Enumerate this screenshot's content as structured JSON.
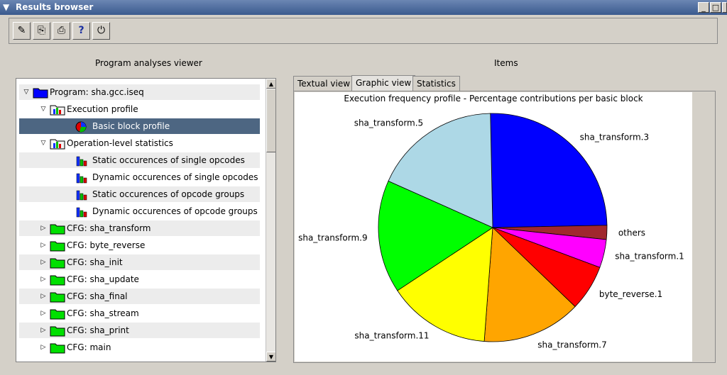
{
  "window": {
    "title": "Results browser",
    "controls": [
      "_",
      "□",
      "×"
    ]
  },
  "toolbar": {
    "buttons": [
      {
        "name": "clear-tool-button",
        "glyph": "✎"
      },
      {
        "name": "import-tool-button",
        "glyph": "⎘"
      },
      {
        "name": "print-tool-button",
        "glyph": "⎙"
      },
      {
        "name": "help-tool-button",
        "glyph": "?"
      },
      {
        "name": "power-tool-button",
        "glyph": "⏻"
      }
    ]
  },
  "left": {
    "header": "Program analyses viewer",
    "tree": [
      {
        "label": "Program: sha.gcc.iseq",
        "level": 0,
        "expander": "open",
        "icon": "folder-blue-icon",
        "style": "alt"
      },
      {
        "label": "Execution profile",
        "level": 1,
        "expander": "open",
        "icon": "chart-folder-icon",
        "style": ""
      },
      {
        "label": "Basic block profile",
        "level": 2,
        "expander": "none",
        "icon": "pie-icon",
        "style": "sel"
      },
      {
        "label": "Operation-level statistics",
        "level": 1,
        "expander": "open",
        "icon": "chart-folder-icon",
        "style": ""
      },
      {
        "label": "Static occurences of single opcodes",
        "level": 2,
        "expander": "none",
        "icon": "bar-icon",
        "style": "alt"
      },
      {
        "label": "Dynamic occurences of single opcodes",
        "level": 2,
        "expander": "none",
        "icon": "bar-icon",
        "style": ""
      },
      {
        "label": "Static occurences of opcode groups",
        "level": 2,
        "expander": "none",
        "icon": "bar-icon",
        "style": "alt"
      },
      {
        "label": "Dynamic occurences of opcode groups",
        "level": 2,
        "expander": "none",
        "icon": "bar-icon",
        "style": ""
      },
      {
        "label": "CFG: sha_transform",
        "level": 1,
        "expander": "closed",
        "icon": "folder-green-icon",
        "style": "alt"
      },
      {
        "label": "CFG: byte_reverse",
        "level": 1,
        "expander": "closed",
        "icon": "folder-green-icon",
        "style": ""
      },
      {
        "label": "CFG: sha_init",
        "level": 1,
        "expander": "closed",
        "icon": "folder-green-icon",
        "style": "alt"
      },
      {
        "label": "CFG: sha_update",
        "level": 1,
        "expander": "closed",
        "icon": "folder-green-icon",
        "style": ""
      },
      {
        "label": "CFG: sha_final",
        "level": 1,
        "expander": "closed",
        "icon": "folder-green-icon",
        "style": "alt"
      },
      {
        "label": "CFG: sha_stream",
        "level": 1,
        "expander": "closed",
        "icon": "folder-green-icon",
        "style": ""
      },
      {
        "label": "CFG: sha_print",
        "level": 1,
        "expander": "closed",
        "icon": "folder-green-icon",
        "style": "alt"
      },
      {
        "label": "CFG: main",
        "level": 1,
        "expander": "closed",
        "icon": "folder-green-icon",
        "style": ""
      }
    ]
  },
  "right": {
    "header": "Items",
    "tabs": [
      {
        "label": "Textual view",
        "active": false
      },
      {
        "label": "Graphic view",
        "active": true
      },
      {
        "label": "Statistics",
        "active": false
      }
    ]
  },
  "chart_data": {
    "type": "pie",
    "title": "Execution frequency profile - Percentage contributions per basic block",
    "legend": "none",
    "slices": [
      {
        "label": "sha_transform.3",
        "value": 25.0,
        "color": "#0000ff"
      },
      {
        "label": "others",
        "value": 2.0,
        "color": "#a0282e"
      },
      {
        "label": "sha_transform.1",
        "value": 4.0,
        "color": "#ff00ff"
      },
      {
        "label": "byte_reverse.1",
        "value": 6.5,
        "color": "#ff0000"
      },
      {
        "label": "sha_transform.7",
        "value": 14.0,
        "color": "#ffa500"
      },
      {
        "label": "sha_transform.11",
        "value": 14.5,
        "color": "#ffff00"
      },
      {
        "label": "sha_transform.9",
        "value": 16.0,
        "color": "#00ff00"
      },
      {
        "label": "sha_transform.5",
        "value": 18.0,
        "color": "#add8e6"
      }
    ]
  }
}
